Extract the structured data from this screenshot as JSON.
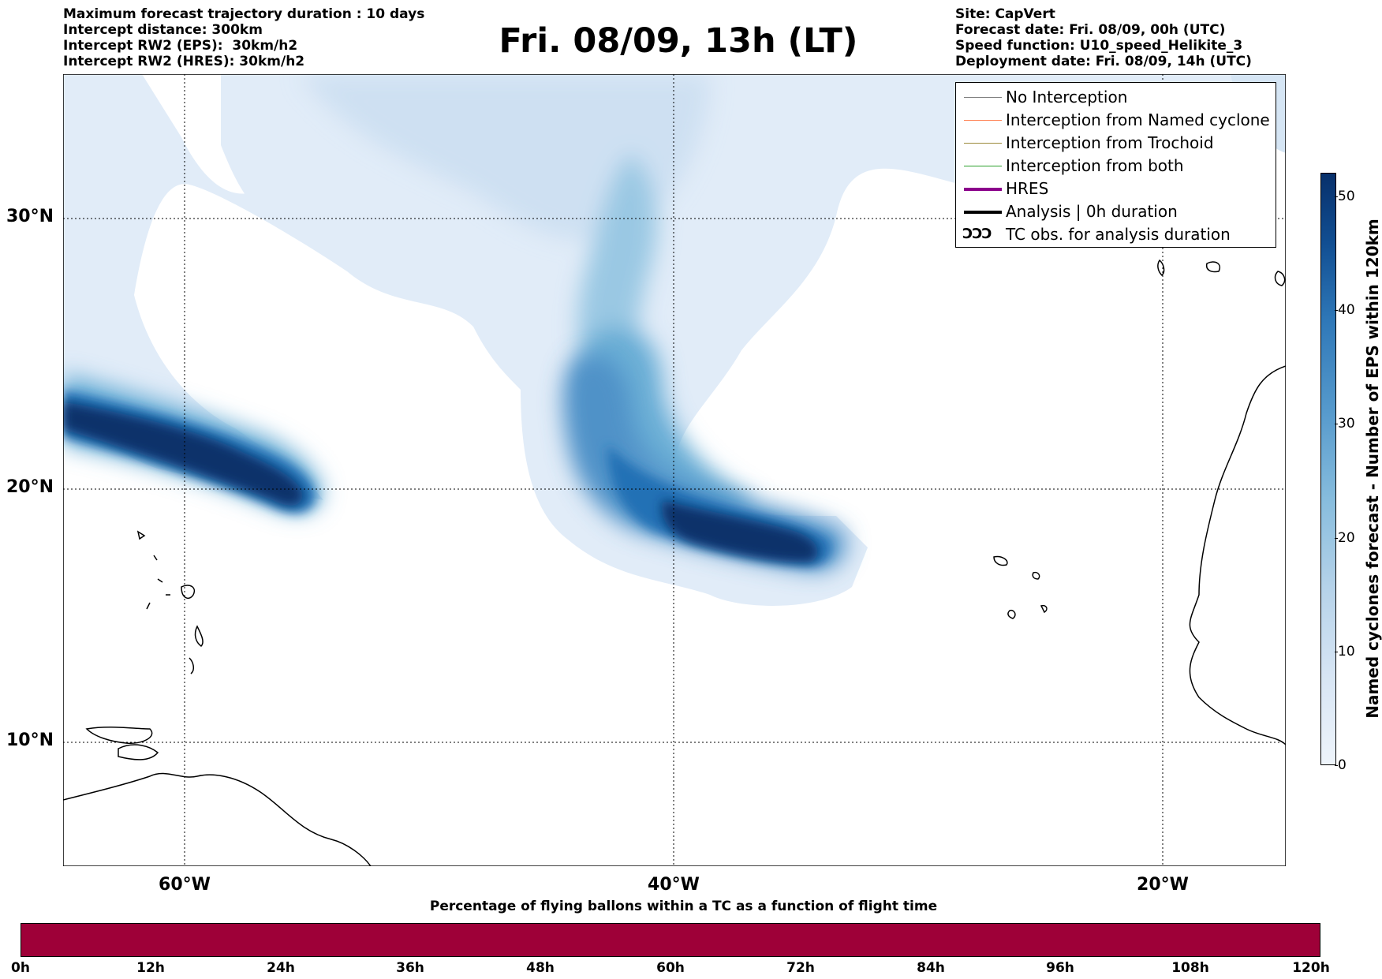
{
  "header_left": [
    "Maximum forecast trajectory duration : 10 days",
    "Intercept distance: 300km",
    "Intercept RW2 (EPS):  30km/h2",
    "Intercept RW2 (HRES): 30km/h2"
  ],
  "title": "Fri. 08/09, 13h (LT)",
  "header_right": [
    "Site: CapVert",
    "Forecast date: Fri. 08/09, 00h (UTC)",
    "Speed function: U10_speed_Helikite_3",
    "Deployment date: Fri. 08/09, 14h (UTC)"
  ],
  "lat_labels": [
    "30°N",
    "20°N",
    "10°N"
  ],
  "lon_labels": [
    "60°W",
    "40°W",
    "20°W"
  ],
  "legend": [
    {
      "label": "No Interception",
      "color": "#808080"
    },
    {
      "label": "Interception from Named cyclone",
      "color": "#ff7f50"
    },
    {
      "label": "Interception from Trochoid",
      "color": "#9b8a3a"
    },
    {
      "label": "Interception from both",
      "color": "#2ca02c"
    },
    {
      "label": "HRES",
      "color": "#8b008b"
    },
    {
      "label": "Analysis | 0h duration",
      "color": "#000000"
    },
    {
      "label": "TC obs. for analysis duration",
      "symbol": "ƆƆƆ"
    }
  ],
  "colorbar": {
    "label": "Named cyclones forecast - Number of EPS within 120km",
    "ticks": [
      "0",
      "10",
      "20",
      "30",
      "40",
      "50"
    ],
    "min": 0,
    "max": 52
  },
  "progress_bar": {
    "title": "Percentage of flying ballons within a TC as a function of flight time",
    "ticks": [
      "0h",
      "12h",
      "24h",
      "36h",
      "48h",
      "60h",
      "72h",
      "84h",
      "96h",
      "108h",
      "120h"
    ],
    "color": "#9e0038"
  }
}
